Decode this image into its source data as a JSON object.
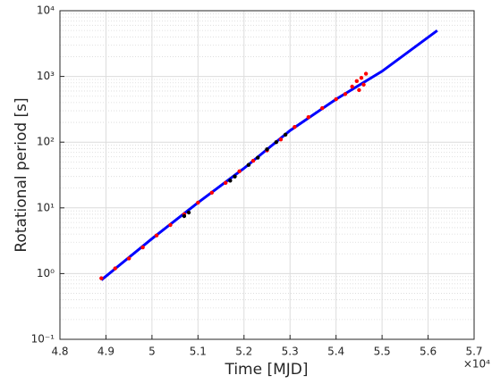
{
  "chart_data": {
    "type": "line",
    "x_label": "Time [MJD]",
    "y_label": "Rotational period [s]",
    "x_exponent_label": "×10⁴",
    "xlim": [
      48000,
      57000
    ],
    "xticks": [
      {
        "value": 48000,
        "label": "4.8"
      },
      {
        "value": 49000,
        "label": "4.9"
      },
      {
        "value": 50000,
        "label": "5"
      },
      {
        "value": 51000,
        "label": "5.1"
      },
      {
        "value": 52000,
        "label": "5.2"
      },
      {
        "value": 53000,
        "label": "5.3"
      },
      {
        "value": 54000,
        "label": "5.4"
      },
      {
        "value": 55000,
        "label": "5.5"
      },
      {
        "value": 56000,
        "label": "5.6"
      },
      {
        "value": 57000,
        "label": "5.7"
      }
    ],
    "ylim": [
      0.1,
      10000
    ],
    "y_scale": "log",
    "yticks": [
      {
        "value": 0.1,
        "label": "10⁻¹"
      },
      {
        "value": 1,
        "label": "10⁰"
      },
      {
        "value": 10,
        "label": "10¹"
      },
      {
        "value": 100,
        "label": "10²"
      },
      {
        "value": 1000,
        "label": "10³"
      },
      {
        "value": 10000,
        "label": "10⁴"
      }
    ],
    "grid": true,
    "series": [
      {
        "color": "#0000ff",
        "mode": "line",
        "x": [
          48900,
          50000,
          51000,
          52000,
          53000,
          54000,
          55000,
          56200
        ],
        "values": [
          0.8,
          3.4,
          12,
          40,
          150,
          450,
          1200,
          5000
        ]
      },
      {
        "color": "#ff0000",
        "mode": "markers",
        "x": [
          48900,
          49200,
          49500,
          49800,
          50100,
          50400,
          50700,
          51000,
          51300,
          51600,
          51900,
          52200,
          52500,
          52800,
          53100,
          53400,
          53700,
          54000,
          54200,
          54350,
          54450,
          54500,
          54550,
          54600,
          54650
        ],
        "values": [
          0.85,
          1.2,
          1.7,
          2.5,
          3.8,
          5.5,
          8,
          12,
          17,
          24,
          36,
          52,
          75,
          110,
          170,
          240,
          330,
          450,
          540,
          700,
          850,
          620,
          950,
          750,
          1100
        ]
      },
      {
        "color": "#000000",
        "mode": "markers",
        "x": [
          50700,
          50800,
          51700,
          51800,
          52100,
          52300,
          52500,
          52700,
          52900
        ],
        "values": [
          7.5,
          8.5,
          26,
          30,
          45,
          58,
          78,
          100,
          130
        ]
      }
    ]
  }
}
